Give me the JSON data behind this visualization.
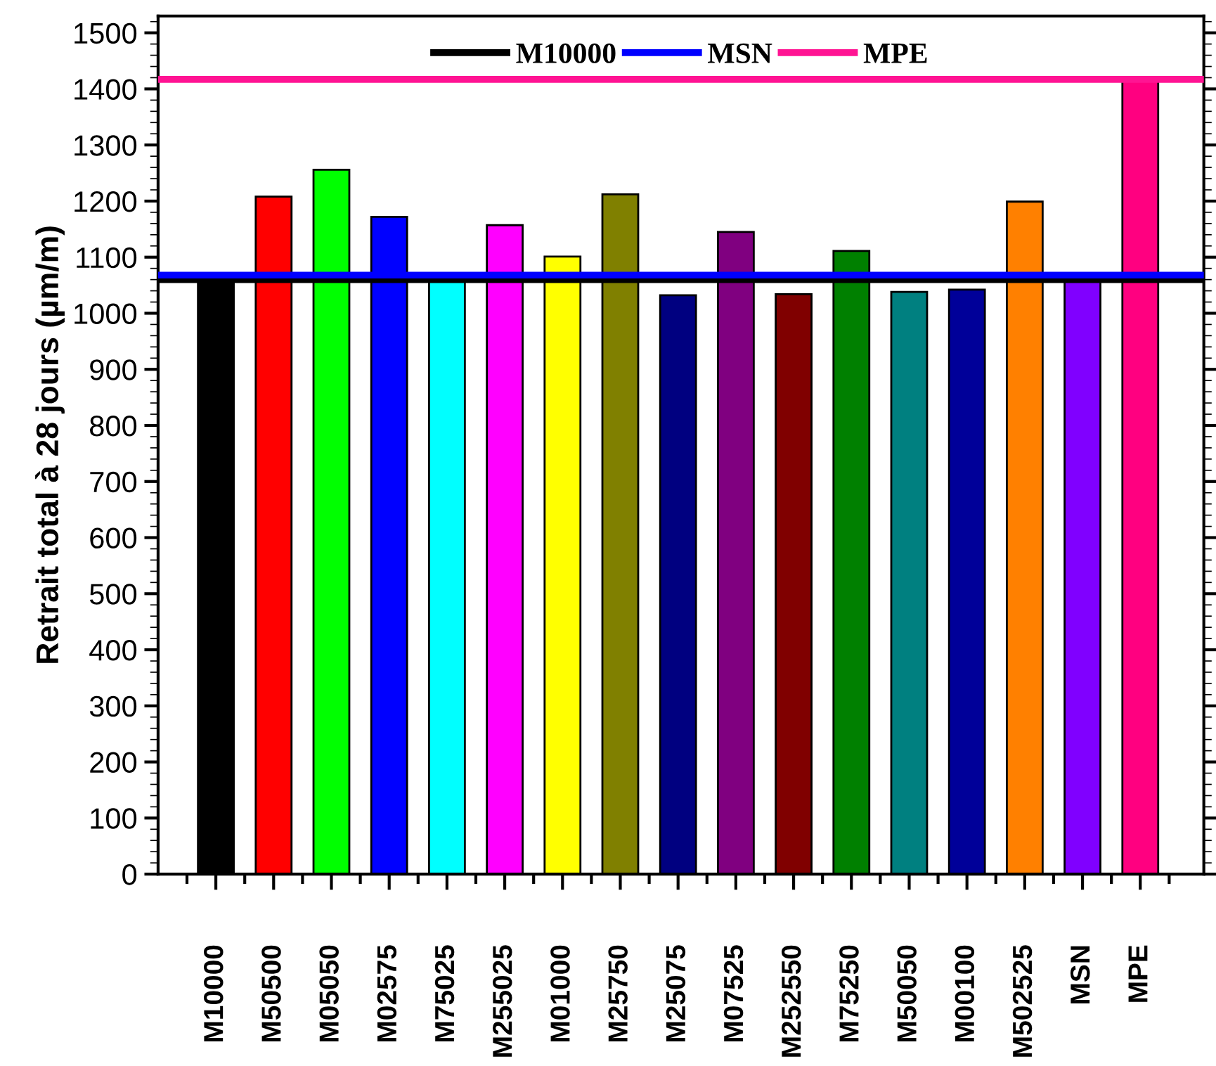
{
  "chart_data": {
    "type": "bar",
    "ylabel": "Retrait total à 28 jours (µm/m)",
    "categories": [
      "M10000",
      "M50500",
      "M05050",
      "M02575",
      "M75025",
      "M255025",
      "M01000",
      "M25750",
      "M25075",
      "M07525",
      "M252550",
      "M75250",
      "M50050",
      "M00100",
      "M502525",
      "MSN",
      "MPE"
    ],
    "values": [
      1060,
      1208,
      1256,
      1172,
      1060,
      1157,
      1101,
      1212,
      1032,
      1145,
      1034,
      1111,
      1038,
      1042,
      1199,
      1060,
      1417
    ],
    "colors": [
      "#000000",
      "#ff0000",
      "#00ff00",
      "#0000ff",
      "#00ffff",
      "#ff00ff",
      "#ffff00",
      "#808000",
      "#000080",
      "#800080",
      "#800000",
      "#008000",
      "#008080",
      "#000099",
      "#ff8000",
      "#8000ff",
      "#ff0080"
    ],
    "ref_lines": [
      {
        "axis": "y",
        "value": 1060,
        "label": "M10000",
        "color": "#000000"
      },
      {
        "axis": "y",
        "value": 1068,
        "label": "MSN",
        "color": "#0000ff"
      },
      {
        "axis": "y",
        "value": 1417,
        "label": "MPE",
        "color": "#ff1493"
      }
    ],
    "ylim": [
      0,
      1530
    ],
    "yticks": [
      0,
      100,
      200,
      300,
      400,
      500,
      600,
      700,
      800,
      900,
      1000,
      1100,
      1200,
      1300,
      1400,
      1500
    ],
    "grid": false,
    "legend": "top"
  }
}
